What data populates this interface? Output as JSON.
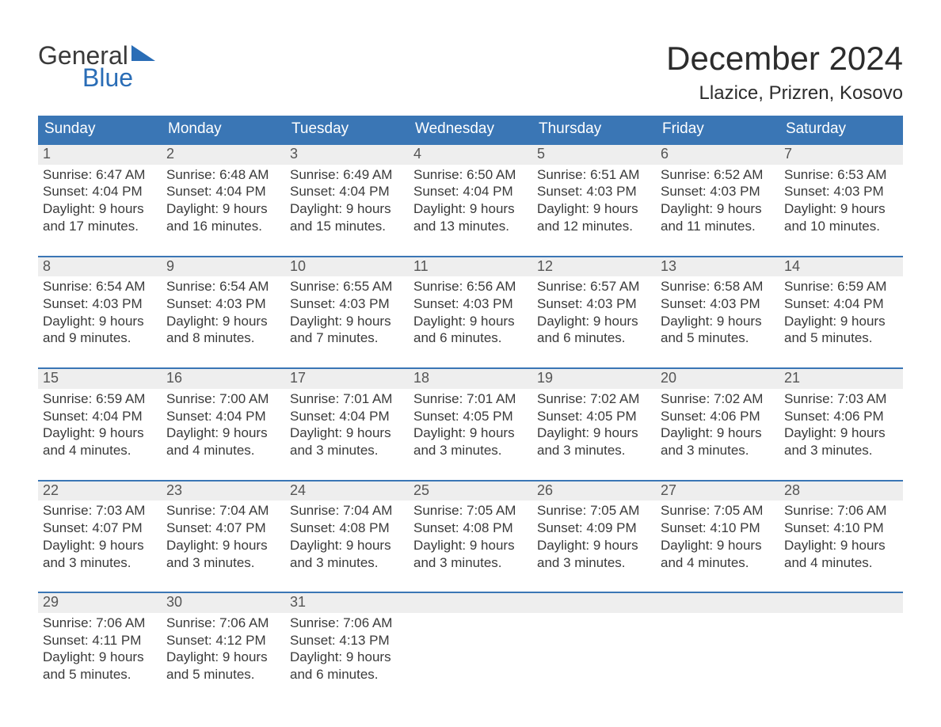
{
  "brand": {
    "word1": "General",
    "word2": "Blue",
    "accent": "#2a6db6"
  },
  "title": "December 2024",
  "location": "Llazice, Prizren, Kosovo",
  "colors": {
    "header_bg": "#3a76b5",
    "header_text": "#ffffff",
    "week_border": "#3a76b5",
    "daynum_bg": "#eeeeee",
    "daynum_text": "#555555",
    "body_text": "#3a3a3a",
    "page_bg": "#ffffff"
  },
  "day_headers": [
    "Sunday",
    "Monday",
    "Tuesday",
    "Wednesday",
    "Thursday",
    "Friday",
    "Saturday"
  ],
  "weeks": [
    [
      {
        "n": "1",
        "sr": "Sunrise: 6:47 AM",
        "ss": "Sunset: 4:04 PM",
        "d1": "Daylight: 9 hours",
        "d2": "and 17 minutes."
      },
      {
        "n": "2",
        "sr": "Sunrise: 6:48 AM",
        "ss": "Sunset: 4:04 PM",
        "d1": "Daylight: 9 hours",
        "d2": "and 16 minutes."
      },
      {
        "n": "3",
        "sr": "Sunrise: 6:49 AM",
        "ss": "Sunset: 4:04 PM",
        "d1": "Daylight: 9 hours",
        "d2": "and 15 minutes."
      },
      {
        "n": "4",
        "sr": "Sunrise: 6:50 AM",
        "ss": "Sunset: 4:04 PM",
        "d1": "Daylight: 9 hours",
        "d2": "and 13 minutes."
      },
      {
        "n": "5",
        "sr": "Sunrise: 6:51 AM",
        "ss": "Sunset: 4:03 PM",
        "d1": "Daylight: 9 hours",
        "d2": "and 12 minutes."
      },
      {
        "n": "6",
        "sr": "Sunrise: 6:52 AM",
        "ss": "Sunset: 4:03 PM",
        "d1": "Daylight: 9 hours",
        "d2": "and 11 minutes."
      },
      {
        "n": "7",
        "sr": "Sunrise: 6:53 AM",
        "ss": "Sunset: 4:03 PM",
        "d1": "Daylight: 9 hours",
        "d2": "and 10 minutes."
      }
    ],
    [
      {
        "n": "8",
        "sr": "Sunrise: 6:54 AM",
        "ss": "Sunset: 4:03 PM",
        "d1": "Daylight: 9 hours",
        "d2": "and 9 minutes."
      },
      {
        "n": "9",
        "sr": "Sunrise: 6:54 AM",
        "ss": "Sunset: 4:03 PM",
        "d1": "Daylight: 9 hours",
        "d2": "and 8 minutes."
      },
      {
        "n": "10",
        "sr": "Sunrise: 6:55 AM",
        "ss": "Sunset: 4:03 PM",
        "d1": "Daylight: 9 hours",
        "d2": "and 7 minutes."
      },
      {
        "n": "11",
        "sr": "Sunrise: 6:56 AM",
        "ss": "Sunset: 4:03 PM",
        "d1": "Daylight: 9 hours",
        "d2": "and 6 minutes."
      },
      {
        "n": "12",
        "sr": "Sunrise: 6:57 AM",
        "ss": "Sunset: 4:03 PM",
        "d1": "Daylight: 9 hours",
        "d2": "and 6 minutes."
      },
      {
        "n": "13",
        "sr": "Sunrise: 6:58 AM",
        "ss": "Sunset: 4:03 PM",
        "d1": "Daylight: 9 hours",
        "d2": "and 5 minutes."
      },
      {
        "n": "14",
        "sr": "Sunrise: 6:59 AM",
        "ss": "Sunset: 4:04 PM",
        "d1": "Daylight: 9 hours",
        "d2": "and 5 minutes."
      }
    ],
    [
      {
        "n": "15",
        "sr": "Sunrise: 6:59 AM",
        "ss": "Sunset: 4:04 PM",
        "d1": "Daylight: 9 hours",
        "d2": "and 4 minutes."
      },
      {
        "n": "16",
        "sr": "Sunrise: 7:00 AM",
        "ss": "Sunset: 4:04 PM",
        "d1": "Daylight: 9 hours",
        "d2": "and 4 minutes."
      },
      {
        "n": "17",
        "sr": "Sunrise: 7:01 AM",
        "ss": "Sunset: 4:04 PM",
        "d1": "Daylight: 9 hours",
        "d2": "and 3 minutes."
      },
      {
        "n": "18",
        "sr": "Sunrise: 7:01 AM",
        "ss": "Sunset: 4:05 PM",
        "d1": "Daylight: 9 hours",
        "d2": "and 3 minutes."
      },
      {
        "n": "19",
        "sr": "Sunrise: 7:02 AM",
        "ss": "Sunset: 4:05 PM",
        "d1": "Daylight: 9 hours",
        "d2": "and 3 minutes."
      },
      {
        "n": "20",
        "sr": "Sunrise: 7:02 AM",
        "ss": "Sunset: 4:06 PM",
        "d1": "Daylight: 9 hours",
        "d2": "and 3 minutes."
      },
      {
        "n": "21",
        "sr": "Sunrise: 7:03 AM",
        "ss": "Sunset: 4:06 PM",
        "d1": "Daylight: 9 hours",
        "d2": "and 3 minutes."
      }
    ],
    [
      {
        "n": "22",
        "sr": "Sunrise: 7:03 AM",
        "ss": "Sunset: 4:07 PM",
        "d1": "Daylight: 9 hours",
        "d2": "and 3 minutes."
      },
      {
        "n": "23",
        "sr": "Sunrise: 7:04 AM",
        "ss": "Sunset: 4:07 PM",
        "d1": "Daylight: 9 hours",
        "d2": "and 3 minutes."
      },
      {
        "n": "24",
        "sr": "Sunrise: 7:04 AM",
        "ss": "Sunset: 4:08 PM",
        "d1": "Daylight: 9 hours",
        "d2": "and 3 minutes."
      },
      {
        "n": "25",
        "sr": "Sunrise: 7:05 AM",
        "ss": "Sunset: 4:08 PM",
        "d1": "Daylight: 9 hours",
        "d2": "and 3 minutes."
      },
      {
        "n": "26",
        "sr": "Sunrise: 7:05 AM",
        "ss": "Sunset: 4:09 PM",
        "d1": "Daylight: 9 hours",
        "d2": "and 3 minutes."
      },
      {
        "n": "27",
        "sr": "Sunrise: 7:05 AM",
        "ss": "Sunset: 4:10 PM",
        "d1": "Daylight: 9 hours",
        "d2": "and 4 minutes."
      },
      {
        "n": "28",
        "sr": "Sunrise: 7:06 AM",
        "ss": "Sunset: 4:10 PM",
        "d1": "Daylight: 9 hours",
        "d2": "and 4 minutes."
      }
    ],
    [
      {
        "n": "29",
        "sr": "Sunrise: 7:06 AM",
        "ss": "Sunset: 4:11 PM",
        "d1": "Daylight: 9 hours",
        "d2": "and 5 minutes."
      },
      {
        "n": "30",
        "sr": "Sunrise: 7:06 AM",
        "ss": "Sunset: 4:12 PM",
        "d1": "Daylight: 9 hours",
        "d2": "and 5 minutes."
      },
      {
        "n": "31",
        "sr": "Sunrise: 7:06 AM",
        "ss": "Sunset: 4:13 PM",
        "d1": "Daylight: 9 hours",
        "d2": "and 6 minutes."
      },
      null,
      null,
      null,
      null
    ]
  ]
}
